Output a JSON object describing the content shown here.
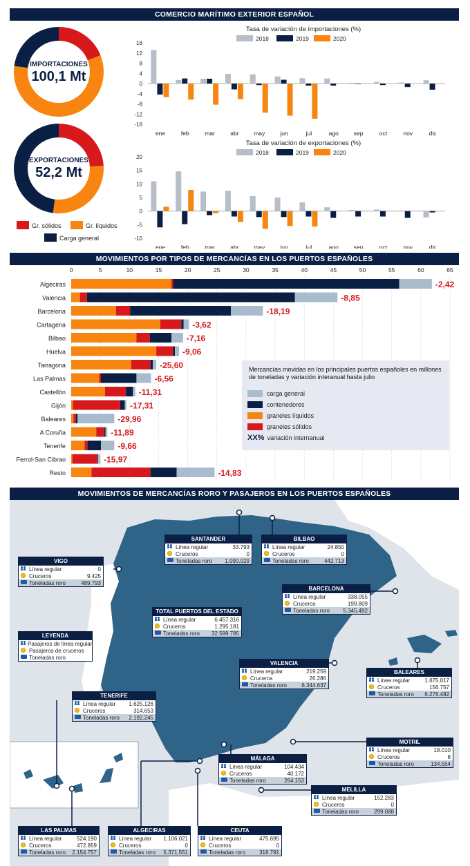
{
  "banners": {
    "top": "COMERCIO MARÍTIMO EXTERIOR ESPAÑOL",
    "middle": "MOVIMIENTOS POR TIPOS DE MERCANCÍAS EN LOS PUERTOS ESPAÑOLES",
    "bottom": "MOVIMIENTOS DE MERCANCÍAS RORO Y PASAJEROS EN LOS PUERTOS ESPAÑOLES"
  },
  "donuts": {
    "import_label": "IMPORTACIONES",
    "import_value": "100,1 Mt",
    "export_label": "EXPORTACIONES",
    "export_value": "52,2 Mt",
    "legend": [
      {
        "label": "Gr. sólidos",
        "color": "#d7191c"
      },
      {
        "label": "Gr. líquidos",
        "color": "#f7850f"
      },
      {
        "label": "Carga general",
        "color": "#0b1f45"
      }
    ]
  },
  "chart_data": [
    {
      "type": "pie",
      "title": "IMPORTACIONES",
      "labels": [
        "Gr. sólidos",
        "Gr. líquidos",
        "Carga general"
      ],
      "values": [
        19,
        58,
        23
      ]
    },
    {
      "type": "pie",
      "title": "EXPORTACIONES",
      "labels": [
        "Gr. sólidos",
        "Gr. líquidos",
        "Carga general"
      ],
      "values": [
        24,
        28,
        48
      ]
    },
    {
      "type": "bar",
      "title": "Tasa de variación de importaciones (%)",
      "categories": [
        "ene",
        "feb",
        "mar",
        "abr",
        "may",
        "jun",
        "jul",
        "ago",
        "sep",
        "oct",
        "nov",
        "dic"
      ],
      "yticks": [
        16,
        12,
        8,
        4,
        0,
        -4,
        -8,
        -12,
        -16
      ],
      "ylim": [
        -16,
        16
      ],
      "series": [
        {
          "name": "2018",
          "color": "#b8bec8",
          "values": [
            13.2,
            1.4,
            1.9,
            3.8,
            3.6,
            2.8,
            2.1,
            2.0,
            0.3,
            0.7,
            0.4,
            1.3
          ]
        },
        {
          "name": "2019",
          "color": "#0b1f45",
          "values": [
            -4.3,
            2.0,
            1.9,
            -2.3,
            -0.6,
            1.5,
            -0.8,
            -0.8,
            -0.2,
            -0.6,
            -1.4,
            -2.4
          ]
        },
        {
          "name": "2020",
          "color": "#f7850f",
          "values": [
            -5.3,
            -6.3,
            -8.3,
            -6.1,
            -11.4,
            -12.6,
            -13.8,
            null,
            null,
            null,
            null,
            null
          ]
        }
      ]
    },
    {
      "type": "bar",
      "title": "Tasa de variación de exportaciones (%)",
      "categories": [
        "ene",
        "feb",
        "mar",
        "abr",
        "may",
        "jun",
        "jul",
        "ago",
        "sep",
        "oct",
        "nov",
        "dic"
      ],
      "yticks": [
        20,
        15,
        10,
        5,
        0,
        -5,
        -10
      ],
      "ylim": [
        -10,
        20
      ],
      "series": [
        {
          "name": "2018",
          "color": "#b8bec8",
          "values": [
            11.0,
            14.6,
            7.2,
            7.5,
            5.5,
            5.0,
            3.2,
            1.4,
            0.4,
            0.6,
            0.2,
            -2.3
          ]
        },
        {
          "name": "2019",
          "color": "#0b1f45",
          "values": [
            -6.0,
            -4.8,
            -1.5,
            -2.0,
            -2.2,
            -2.2,
            -2.0,
            -2.5,
            -2.0,
            -2.0,
            -2.5,
            -0.5
          ]
        },
        {
          "name": "2020",
          "color": "#f7850f",
          "values": [
            1.6,
            7.8,
            -0.8,
            -4.0,
            -6.5,
            -5.5,
            -5.7,
            null,
            null,
            null,
            null,
            null
          ]
        }
      ]
    },
    {
      "type": "bar",
      "orientation": "horizontal",
      "stacked": true,
      "xticks": [
        0,
        5,
        10,
        15,
        20,
        25,
        30,
        35,
        40,
        45,
        50,
        55,
        60,
        65
      ],
      "xlim": [
        0,
        65
      ],
      "categories": [
        "Algeciras",
        "Valencia",
        "Barcelona",
        "Cartagena",
        "Bilbao",
        "Huelva",
        "Tarragona",
        "Las Palmas",
        "Castellón",
        "Gijón",
        "Baleares",
        "A Coruña",
        "Tenerife",
        "Ferrol-San Cibrao",
        "Resto"
      ],
      "series": [
        {
          "name": "graneles líquidos",
          "color": "#f7850f",
          "values": [
            17.2,
            1.5,
            7.7,
            15.3,
            11.2,
            14.6,
            10.3,
            4.8,
            5.8,
            0.3,
            0.4,
            4.3,
            2.3,
            0.2,
            3.5
          ]
        },
        {
          "name": "graneles sólidos",
          "color": "#d7191c",
          "values": [
            0.3,
            1.2,
            2.4,
            3.6,
            2.3,
            2.9,
            3.3,
            0.3,
            3.6,
            8.1,
            0.4,
            1.4,
            0.5,
            4.3,
            10.1
          ]
        },
        {
          "name": "contenedores",
          "color": "#0b1f45",
          "values": [
            38.8,
            35.7,
            17.3,
            0.4,
            3.7,
            0.3,
            0.4,
            6.1,
            1.2,
            0.8,
            0.3,
            0.2,
            2.3,
            0.1,
            4.5
          ]
        },
        {
          "name": "carga general",
          "color": "#a9bccd",
          "values": [
            5.6,
            7.3,
            5.5,
            0.9,
            2.0,
            0.7,
            0.6,
            2.5,
            0.4,
            0.3,
            6.3,
            0.3,
            2.3,
            0.4,
            6.5
          ]
        }
      ],
      "annotations": [
        "-2,42",
        "-8,85",
        "-18,19",
        "-3,62",
        "-7,16",
        "-9,06",
        "-25,60",
        "-6,56",
        "-11,31",
        "-17,31",
        "-29,96",
        "-11,89",
        "-9,66",
        "-15,97",
        "-14,83"
      ]
    }
  ],
  "bar_legend": {
    "caption": "Mercancías movidas en los principales puertos españoles en millones de toneladas y variación interanual hasta julio",
    "items": [
      {
        "label": "carga general",
        "color": "#a9bccd"
      },
      {
        "label": "contenedores",
        "color": "#0b1f45"
      },
      {
        "label": "graneles líquidos",
        "color": "#f7850f"
      },
      {
        "label": "graneles sólidos",
        "color": "#d7191c"
      }
    ],
    "xx_symbol": "XX%",
    "xx_label": "variación internanual"
  },
  "map": {
    "row_labels": {
      "pax": "Línea regular",
      "cru": "Cruceros",
      "ton": "Toneladas roro"
    },
    "legend": {
      "title": "LEYENDA",
      "items": [
        "Pasajeros de línea regular",
        "Pasajeros de cruceros",
        "Toneladas roro"
      ]
    },
    "ports": [
      {
        "name": "SANTANDER",
        "pax": "33.793",
        "cru": "0",
        "ton": "1.090.029"
      },
      {
        "name": "BILBAO",
        "pax": "24.850",
        "cru": "0",
        "ton": "442.713"
      },
      {
        "name": "VIGO",
        "pax": "0",
        "cru": "9.425",
        "ton": "489.793"
      },
      {
        "name": "BARCELONA",
        "pax": "338.055",
        "cru": "199.809",
        "ton": "5.345.492"
      },
      {
        "name": "TOTAL PUERTOS DEL ESTADO",
        "pax": "6.457.316",
        "cru": "1.295.181",
        "ton": "32.599.785"
      },
      {
        "name": "VALENCIA",
        "pax": "219.259",
        "cru": "26.286",
        "ton": "6.344.637"
      },
      {
        "name": "BALEARES",
        "pax": "1.675.017",
        "cru": "156.757",
        "ton": "6.276.482"
      },
      {
        "name": "TENERIFE",
        "pax": "1.625.126",
        "cru": "314.653",
        "ton": "2.192.245"
      },
      {
        "name": "MOTRIL",
        "pax": "18.010",
        "cru": "8",
        "ton": "134.554"
      },
      {
        "name": "MÁLAGA",
        "pax": "104.434",
        "cru": "40.172",
        "ton": "264.153"
      },
      {
        "name": "MELILLA",
        "pax": "152.283",
        "cru": "0",
        "ton": "299.088"
      },
      {
        "name": "LAS PALMAS",
        "pax": "524.190",
        "cru": "472.859",
        "ton": "2.154.757"
      },
      {
        "name": "ALGECIRAS",
        "pax": "1.106.021",
        "cru": "0",
        "ton": "5.371.551"
      },
      {
        "name": "CEUTA",
        "pax": "475.695",
        "cru": "0",
        "ton": "318.791"
      }
    ]
  }
}
